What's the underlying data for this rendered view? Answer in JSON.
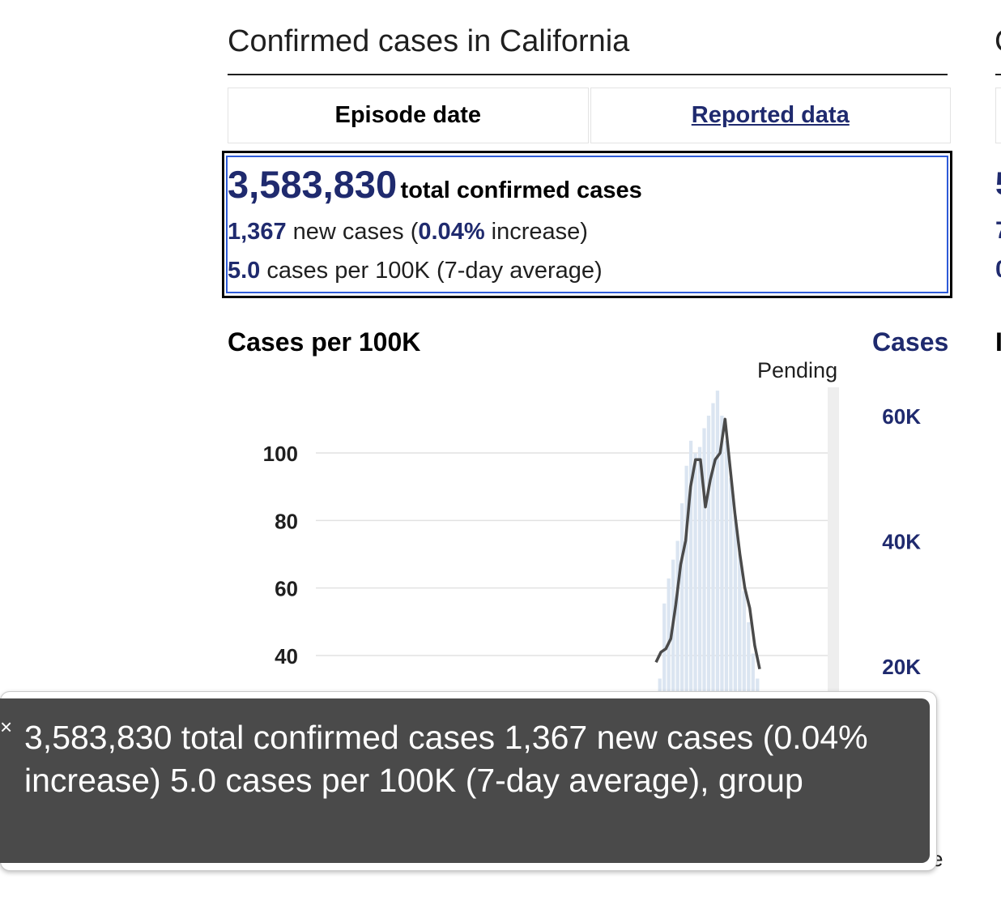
{
  "header": {
    "title": "Confirmed cases in California",
    "right_clipped_title": "C"
  },
  "tabs": [
    {
      "label": "Episode date",
      "active": true
    },
    {
      "label": "Reported data",
      "active": false
    }
  ],
  "stats": {
    "total_value": "3,583,830",
    "total_label": "total confirmed cases",
    "new_value": "1,367",
    "new_label_a": "new cases (",
    "pct_value": "0.04%",
    "new_label_b": "increase)",
    "avg_value": "5.0",
    "avg_label": "cases per 100K (7-day average)",
    "right_clipped": [
      "5",
      "7",
      "0"
    ]
  },
  "chart": {
    "left_title": "Cases per 100K",
    "right_title": "Cases",
    "right_clipped_title": "I",
    "pending_label": "Pending"
  },
  "chart_data": {
    "type": "area",
    "title": "",
    "ylabel_left": "Cases per 100K",
    "ylabel_right": "Cases",
    "left_ticks": [
      "100",
      "80",
      "60",
      "40"
    ],
    "right_ticks": [
      "60K",
      "40K",
      "20K"
    ],
    "ylim_left": [
      0,
      140
    ],
    "ylim_right": [
      0,
      80000
    ],
    "series": [
      {
        "name": "Cases",
        "kind": "bars",
        "values": [
          18000,
          30000,
          34000,
          37000,
          40000,
          46000,
          52000,
          56000,
          54000,
          55000,
          58000,
          60000,
          62000,
          64000,
          60000,
          56000,
          50000,
          44000,
          38000,
          32000,
          27000,
          22000,
          18000
        ]
      },
      {
        "name": "Cases per 100K",
        "kind": "line",
        "values": [
          38,
          41,
          42,
          45,
          55,
          67,
          74,
          90,
          98,
          98,
          84,
          92,
          98,
          100,
          110,
          96,
          82,
          70,
          60,
          54,
          43,
          36
        ]
      }
    ],
    "grid": true,
    "pending_region": true
  },
  "tooltip": {
    "text": "3,583,830 total confirmed cases 1,367 new cases (0.04% increase) 5.0 cases per 100K (7-day average), group",
    "close_symbol": "×",
    "behind_glyph": "e"
  },
  "colors": {
    "accent": "#1f2a6e",
    "focus": "#2e5bd8",
    "bars": "#dbe5f1",
    "line": "#4a4a4a",
    "tooltip_bg": "#4a4a4a",
    "pending_band": "#eeeeee"
  }
}
